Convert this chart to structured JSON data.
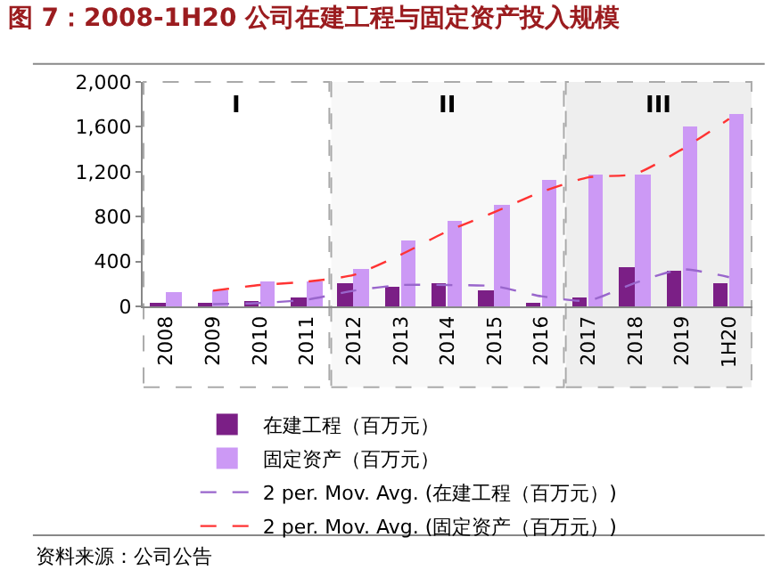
{
  "chart_data": {
    "type": "bar",
    "title": "图 7：2008-1H20 公司在建工程与固定资产投入规模",
    "categories": [
      "2008",
      "2009",
      "2010",
      "2011",
      "2012",
      "2013",
      "2014",
      "2015",
      "2016",
      "2017",
      "2018",
      "2019",
      "1H20"
    ],
    "series": [
      {
        "name": "在建工程（百万元）",
        "color": "#7b1f86",
        "values": [
          20,
          20,
          40,
          80,
          200,
          170,
          200,
          150,
          20,
          80,
          350,
          320,
          200
        ]
      },
      {
        "name": "固定资产（百万元）",
        "color": "#cc99f5",
        "values": [
          120,
          150,
          220,
          220,
          330,
          580,
          760,
          910,
          1130,
          1170,
          1180,
          1610,
          1720
        ]
      },
      {
        "name": "2 per. Mov. Avg. (在建工程（百万元）)",
        "type": "line",
        "line_style": "dashed",
        "color": "#9966cc",
        "values": [
          null,
          20,
          30,
          60,
          140,
          190,
          190,
          180,
          90,
          50,
          210,
          330,
          260
        ]
      },
      {
        "name": "2 per. Mov. Avg. (固定资产（百万元）)",
        "type": "line",
        "line_style": "dashed",
        "color": "#ff3333",
        "values": [
          null,
          140,
          190,
          220,
          280,
          460,
          670,
          840,
          1020,
          1150,
          1180,
          1400,
          1670
        ]
      }
    ],
    "ylim": [
      0,
      2000
    ],
    "yticks": [
      0,
      400,
      {
        "value": 800,
        "label": "800"
      },
      {
        "value": 1200,
        "label": "1,200"
      },
      {
        "value": 1600,
        "label": "1,600"
      },
      {
        "value": 2000,
        "label": "2,000"
      }
    ],
    "bands": [
      {
        "axis": "x",
        "from": "2008",
        "to": "2011",
        "label": "I",
        "color": "#ffffff"
      },
      {
        "axis": "x",
        "from": "2012",
        "to": "2016",
        "label": "II",
        "color": "#f8f8f8"
      },
      {
        "axis": "x",
        "from": "2017",
        "to": "1H20",
        "label": "III",
        "color": "#eeeeee"
      }
    ],
    "grid": false,
    "legend": "bottom",
    "marker": "none",
    "annotations": [
      "资料来源：公司公告"
    ]
  }
}
